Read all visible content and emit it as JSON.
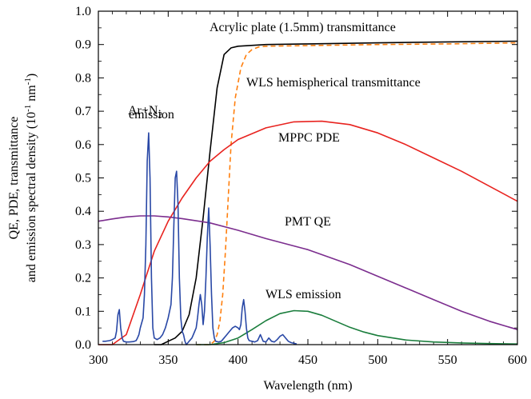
{
  "chart_data": {
    "type": "line",
    "xlabel": "Wavelength (nm)",
    "ylabel_lines": [
      "QE, PDE, transmittance",
      "and emission spectral density (10⁻¹ nm⁻¹)"
    ],
    "xlim": [
      300,
      600
    ],
    "ylim": [
      0,
      1.0
    ],
    "x_ticks": [
      300,
      350,
      400,
      450,
      500,
      550,
      600
    ],
    "x_tick_labels": [
      "300",
      "350",
      "400",
      "450",
      "500",
      "550",
      "600"
    ],
    "y_ticks": [
      0,
      0.1,
      0.2,
      0.3,
      0.4,
      0.5,
      0.6,
      0.7,
      0.8,
      0.9,
      1.0
    ],
    "y_tick_labels": [
      "0.0",
      "0.1",
      "0.2",
      "0.3",
      "0.4",
      "0.5",
      "0.6",
      "0.7",
      "0.8",
      "0.9",
      "1.0"
    ],
    "grid": false,
    "series": [
      {
        "key": "acrylic",
        "color": "#000000",
        "dash": "none",
        "x": [
          340,
          345,
          350,
          355,
          360,
          365,
          370,
          375,
          380,
          385,
          390,
          395,
          400,
          420,
          450,
          500,
          550,
          600
        ],
        "values": [
          0.0,
          0.0,
          0.01,
          0.02,
          0.04,
          0.09,
          0.2,
          0.38,
          0.58,
          0.77,
          0.87,
          0.89,
          0.895,
          0.9,
          0.902,
          0.905,
          0.908,
          0.91
        ]
      },
      {
        "key": "wls_trans",
        "color": "#ff7f0e",
        "dash": "6,4",
        "x": [
          370,
          380,
          383,
          385,
          387,
          389,
          391,
          393,
          395,
          398,
          402,
          406,
          410,
          415,
          420,
          450,
          500,
          550,
          600
        ],
        "values": [
          0.0,
          0.0,
          0.01,
          0.03,
          0.07,
          0.15,
          0.28,
          0.44,
          0.6,
          0.74,
          0.83,
          0.87,
          0.885,
          0.893,
          0.895,
          0.897,
          0.9,
          0.902,
          0.905
        ]
      },
      {
        "key": "mppc",
        "color": "#e8231f",
        "dash": "none",
        "x": [
          300,
          310,
          320,
          330,
          340,
          350,
          360,
          370,
          380,
          390,
          400,
          420,
          440,
          460,
          480,
          500,
          520,
          540,
          560,
          580,
          600
        ],
        "values": [
          0.0,
          0.0,
          0.03,
          0.15,
          0.28,
          0.37,
          0.44,
          0.5,
          0.55,
          0.585,
          0.615,
          0.65,
          0.668,
          0.67,
          0.66,
          0.635,
          0.6,
          0.56,
          0.52,
          0.475,
          0.43
        ]
      },
      {
        "key": "pmt",
        "color": "#7b2d8e",
        "dash": "none",
        "x": [
          300,
          310,
          320,
          330,
          340,
          350,
          360,
          380,
          400,
          420,
          450,
          480,
          500,
          520,
          540,
          560,
          580,
          600
        ],
        "values": [
          0.37,
          0.377,
          0.383,
          0.386,
          0.386,
          0.383,
          0.378,
          0.365,
          0.343,
          0.318,
          0.285,
          0.24,
          0.205,
          0.17,
          0.135,
          0.1,
          0.07,
          0.045
        ]
      },
      {
        "key": "wls_emission",
        "color": "#1a7d3c",
        "dash": "none",
        "x": [
          370,
          380,
          390,
          400,
          410,
          420,
          430,
          440,
          450,
          460,
          470,
          480,
          490,
          500,
          520,
          540,
          560,
          580,
          600
        ],
        "values": [
          0.0,
          0.0,
          0.006,
          0.02,
          0.045,
          0.072,
          0.093,
          0.102,
          0.1,
          0.088,
          0.07,
          0.052,
          0.038,
          0.027,
          0.014,
          0.008,
          0.005,
          0.003,
          0.002
        ]
      },
      {
        "key": "ar_n2",
        "color": "#2948a6",
        "dash": "none",
        "x": [
          303,
          305,
          308,
          310,
          312,
          313,
          314,
          315,
          316,
          317,
          318,
          320,
          322,
          325,
          327,
          328,
          329,
          330,
          332,
          333,
          334,
          335,
          336,
          337,
          338,
          339,
          340,
          342,
          344,
          346,
          348,
          350,
          352,
          353,
          354,
          355,
          356,
          357,
          358,
          359,
          360,
          361,
          362,
          363,
          365,
          367,
          368,
          370,
          371,
          372,
          373,
          374,
          375,
          376,
          377,
          378,
          379,
          380,
          381,
          382,
          383,
          384,
          386,
          388,
          390,
          392,
          394,
          396,
          398,
          400,
          401,
          402,
          403,
          404,
          405,
          406,
          407,
          408,
          410,
          412,
          414,
          416,
          418,
          420,
          422,
          424,
          426,
          428,
          430,
          432,
          434,
          436,
          438,
          440,
          442
        ],
        "values": [
          0.01,
          0.01,
          0.012,
          0.015,
          0.02,
          0.04,
          0.09,
          0.105,
          0.05,
          0.02,
          0.01,
          0.008,
          0.008,
          0.009,
          0.012,
          0.02,
          0.03,
          0.05,
          0.08,
          0.15,
          0.3,
          0.55,
          0.635,
          0.5,
          0.2,
          0.05,
          0.02,
          0.015,
          0.02,
          0.03,
          0.05,
          0.08,
          0.12,
          0.2,
          0.35,
          0.5,
          0.52,
          0.42,
          0.2,
          0.08,
          0.04,
          0.03,
          0.01,
          0.0,
          0.01,
          0.02,
          0.03,
          0.05,
          0.08,
          0.12,
          0.15,
          0.12,
          0.06,
          0.1,
          0.2,
          0.32,
          0.41,
          0.3,
          0.15,
          0.05,
          0.02,
          0.01,
          0.008,
          0.01,
          0.02,
          0.03,
          0.04,
          0.05,
          0.055,
          0.05,
          0.045,
          0.06,
          0.11,
          0.135,
          0.1,
          0.05,
          0.02,
          0.012,
          0.01,
          0.008,
          0.012,
          0.03,
          0.01,
          0.008,
          0.02,
          0.01,
          0.008,
          0.015,
          0.025,
          0.03,
          0.02,
          0.01,
          0.006,
          0.004,
          0.002
        ]
      }
    ],
    "annotations": {
      "acrylic": "Acrylic plate (1.5mm) transmittance",
      "wls_trans": "WLS hemispherical transmittance",
      "ar_line1": "Ar+N",
      "ar_sub": "2",
      "ar_line2": "emission",
      "mppc": "MPPC PDE",
      "pmt": "PMT QE",
      "wls_emission": "WLS emission"
    }
  }
}
